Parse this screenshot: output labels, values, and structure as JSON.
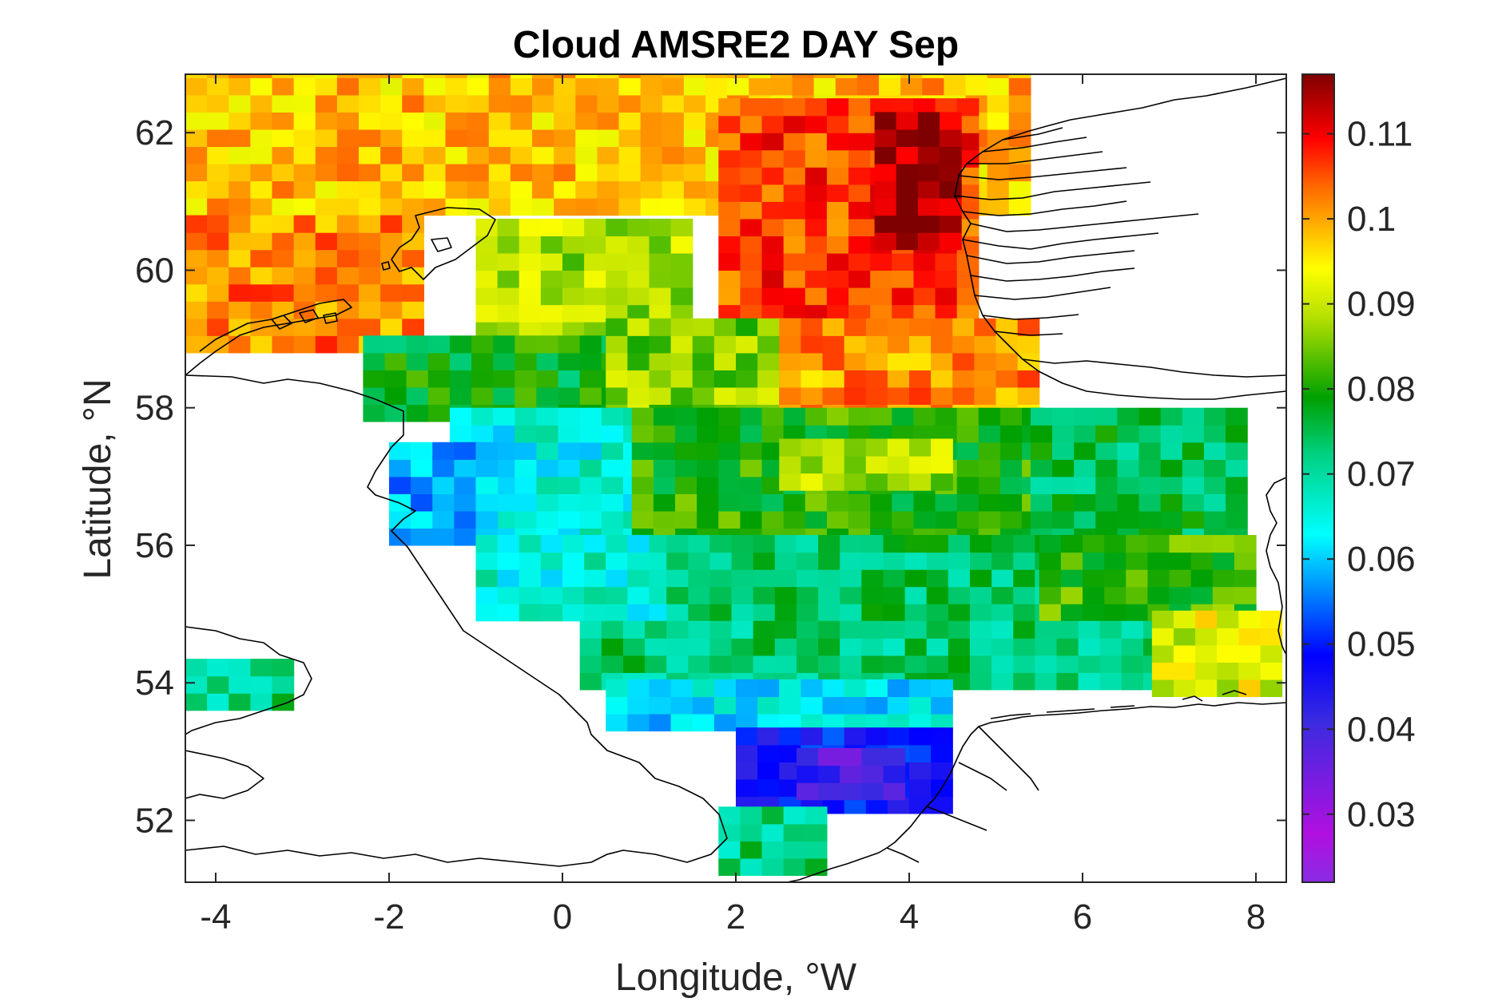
{
  "chart_data": {
    "type": "heatmap",
    "title": "Cloud AMSRE2 DAY Sep",
    "xlabel": "Longitude, °W",
    "ylabel": "Latitude, °N",
    "xlim": [
      -4.35,
      8.35
    ],
    "ylim": [
      51.1,
      62.85
    ],
    "xticks": [
      "-4",
      "-2",
      "0",
      "2",
      "4",
      "6",
      "8"
    ],
    "yticks": [
      "52",
      "54",
      "56",
      "58",
      "60",
      "62"
    ],
    "colorbar": {
      "range": [
        0.022,
        0.117
      ],
      "ticks": [
        "0.03",
        "0.04",
        "0.05",
        "0.06",
        "0.07",
        "0.08",
        "0.09",
        "0.1",
        "0.11"
      ],
      "colormap": "jet-like: purple-blue-cyan-green-yellow-red-darkred"
    },
    "cell_size_deg": {
      "lon": 0.25,
      "lat": 0.25
    },
    "grid": false,
    "colors": {
      "land_outline": "#000000",
      "background": "#ffffff",
      "axes": "#262626"
    },
    "regions": [
      {
        "lon": [
          -4.35,
          5.2
        ],
        "lat": [
          60.8,
          62.85
        ],
        "value": 0.098
      },
      {
        "lon": [
          1.8,
          4.6
        ],
        "lat": [
          59.0,
          62.3
        ],
        "value": 0.106
      },
      {
        "lon": [
          3.6,
          4.5
        ],
        "lat": [
          60.3,
          62.3
        ],
        "value": 0.115
      },
      {
        "lon": [
          -4.35,
          -1.8
        ],
        "lat": [
          58.8,
          60.8
        ],
        "value": 0.102
      },
      {
        "lon": [
          -1.0,
          1.5
        ],
        "lat": [
          59.0,
          60.6
        ],
        "value": 0.088
      },
      {
        "lon": [
          -2.3,
          1.5
        ],
        "lat": [
          57.8,
          59.0
        ],
        "value": 0.078
      },
      {
        "lon": [
          0.5,
          3.0
        ],
        "lat": [
          57.8,
          59.2
        ],
        "value": 0.086
      },
      {
        "lon": [
          2.5,
          5.3
        ],
        "lat": [
          57.8,
          59.2
        ],
        "value": 0.101
      },
      {
        "lon": [
          -1.3,
          0.8
        ],
        "lat": [
          56.0,
          57.9
        ],
        "value": 0.065
      },
      {
        "lon": [
          -2.0,
          -0.8
        ],
        "lat": [
          56.0,
          57.3
        ],
        "value": 0.058
      },
      {
        "lon": [
          0.8,
          5.4
        ],
        "lat": [
          56.0,
          57.9
        ],
        "value": 0.08
      },
      {
        "lon": [
          2.5,
          4.5
        ],
        "lat": [
          56.8,
          57.5
        ],
        "value": 0.088
      },
      {
        "lon": [
          5.4,
          7.8
        ],
        "lat": [
          56.0,
          57.9
        ],
        "value": 0.075
      },
      {
        "lon": [
          -1.0,
          1.2
        ],
        "lat": [
          54.9,
          56.0
        ],
        "value": 0.066
      },
      {
        "lon": [
          1.2,
          5.5
        ],
        "lat": [
          54.9,
          56.0
        ],
        "value": 0.074
      },
      {
        "lon": [
          5.5,
          7.8
        ],
        "lat": [
          54.9,
          56.0
        ],
        "value": 0.082
      },
      {
        "lon": [
          0.2,
          6.8
        ],
        "lat": [
          53.9,
          54.9
        ],
        "value": 0.073
      },
      {
        "lon": [
          6.8,
          8.3
        ],
        "lat": [
          53.8,
          54.9
        ],
        "value": 0.092
      },
      {
        "lon": [
          0.5,
          4.5
        ],
        "lat": [
          53.3,
          53.9
        ],
        "value": 0.062
      },
      {
        "lon": [
          2.0,
          4.3
        ],
        "lat": [
          52.1,
          53.3
        ],
        "value": 0.048
      },
      {
        "lon": [
          2.7,
          3.9
        ],
        "lat": [
          52.3,
          53.0
        ],
        "value": 0.04
      },
      {
        "lon": [
          1.8,
          3.0
        ],
        "lat": [
          51.2,
          52.1
        ],
        "value": 0.072
      },
      {
        "lon": [
          -4.35,
          -3.2
        ],
        "lat": [
          53.6,
          54.2
        ],
        "value": 0.072
      }
    ]
  }
}
